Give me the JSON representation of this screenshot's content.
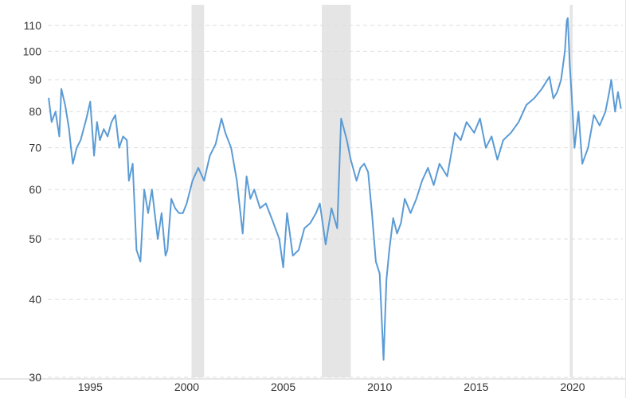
{
  "chart_data": {
    "type": "line",
    "title": "",
    "xlabel": "",
    "ylabel": "",
    "y_scale": "log",
    "xlim": [
      1992.8,
      2022.6
    ],
    "ylim": [
      30,
      118
    ],
    "y_ticks": [
      30,
      40,
      50,
      60,
      70,
      80,
      90,
      100,
      110
    ],
    "y_tick_labels": [
      "30",
      "40",
      "50",
      "60",
      "70",
      "80",
      "90",
      "100",
      "110"
    ],
    "x_ticks": [
      1995,
      2000,
      2005,
      2010,
      2015,
      2020
    ],
    "x_tick_labels": [
      "1995",
      "2000",
      "2005",
      "2010",
      "2015",
      "2020"
    ],
    "grid": "horizontal dashed",
    "colors": {
      "line": "#5b9bd5",
      "recession": "#e5e5e5",
      "grid": "#dddddd",
      "text": "#333333"
    },
    "shaded_periods": [
      {
        "start": 2000.25,
        "end": 2000.9
      },
      {
        "start": 2007.0,
        "end": 2008.5
      },
      {
        "start": 2019.85,
        "end": 2020.0
      }
    ],
    "series": [
      {
        "x": [
          1992.85,
          1993.0,
          1993.2,
          1993.4,
          1993.5,
          1993.7,
          1993.9,
          1994.0,
          1994.1,
          1994.3,
          1994.5,
          1994.8,
          1995.0,
          1995.2,
          1995.35,
          1995.5,
          1995.7,
          1995.9,
          1996.1,
          1996.3,
          1996.5,
          1996.7,
          1996.9,
          1997.0,
          1997.2,
          1997.4,
          1997.6,
          1997.8,
          1998.0,
          1998.2,
          1998.5,
          1998.7,
          1998.9,
          1999.0,
          1999.2,
          1999.4,
          1999.6,
          1999.8,
          2000.0,
          2000.3,
          2000.6,
          2000.9,
          2001.2,
          2001.5,
          2001.8,
          2002.0,
          2002.3,
          2002.6,
          2002.9,
          2003.1,
          2003.3,
          2003.5,
          2003.8,
          2004.1,
          2004.4,
          2004.8,
          2005.0,
          2005.2,
          2005.5,
          2005.8,
          2006.1,
          2006.4,
          2006.7,
          2006.9,
          2007.2,
          2007.5,
          2007.8,
          2008.0,
          2008.3,
          2008.5,
          2008.8,
          2009.0,
          2009.2,
          2009.4,
          2009.6,
          2009.8,
          2010.0,
          2010.2,
          2010.35,
          2010.5,
          2010.7,
          2010.9,
          2011.1,
          2011.3,
          2011.6,
          2011.9,
          2012.2,
          2012.5,
          2012.8,
          2013.1,
          2013.5,
          2013.9,
          2014.2,
          2014.5,
          2014.9,
          2015.2,
          2015.5,
          2015.8,
          2016.1,
          2016.4,
          2016.8,
          2017.2,
          2017.6,
          2018.0,
          2018.4,
          2018.8,
          2019.0,
          2019.2,
          2019.4,
          2019.6,
          2019.7,
          2019.75,
          2019.85,
          2019.95,
          2020.1,
          2020.3,
          2020.5,
          2020.8,
          2021.1,
          2021.4,
          2021.7,
          2021.9,
          2022.0,
          2022.2,
          2022.35,
          2022.5
        ],
        "values": [
          84,
          77,
          80,
          73,
          87,
          82,
          75,
          70,
          66,
          70,
          72,
          78,
          83,
          68,
          77,
          72,
          75,
          73,
          77,
          79,
          70,
          73,
          72,
          62,
          66,
          48,
          46,
          60,
          55,
          60,
          50,
          55,
          47,
          48,
          58,
          56,
          55,
          55,
          57,
          62,
          65,
          62,
          68,
          71,
          78,
          74,
          70,
          62,
          51,
          63,
          58,
          60,
          56,
          57,
          54,
          50,
          45,
          55,
          47,
          48,
          52,
          53,
          55,
          57,
          49,
          56,
          52,
          78,
          72,
          67,
          62,
          65,
          66,
          64,
          55,
          46,
          44,
          32,
          43,
          48,
          54,
          51,
          53,
          58,
          55,
          58,
          62,
          65,
          61,
          66,
          63,
          74,
          72,
          77,
          74,
          78,
          70,
          73,
          67,
          72,
          74,
          77,
          82,
          84,
          87,
          91,
          84,
          86,
          90,
          100,
          112,
          113,
          95,
          85,
          70,
          80,
          66,
          70,
          79,
          76,
          80,
          86,
          90,
          80,
          86,
          81
        ]
      }
    ]
  }
}
